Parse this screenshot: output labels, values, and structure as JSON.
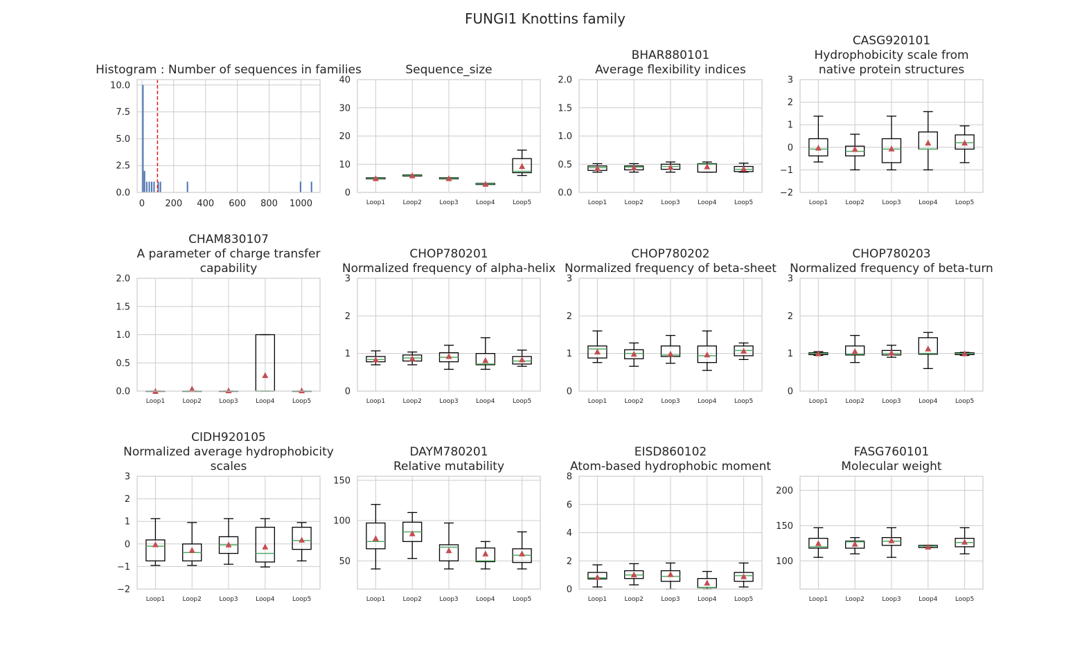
{
  "figure": {
    "title": "FUNGI1 Knottins family"
  },
  "chart_data": [
    {
      "type": "histogram",
      "title_lines": [
        "Histogram : Number of sequences in families"
      ],
      "xlim": [
        -30,
        1120
      ],
      "ylim": [
        0,
        10.5
      ],
      "xticks": [
        0,
        200,
        400,
        600,
        800,
        1000
      ],
      "yticks": [
        0.0,
        2.5,
        5.0,
        7.5,
        10.0
      ],
      "ytick_labels": [
        "0.0",
        "2.5",
        "5.0",
        "7.5",
        "10.0"
      ],
      "bar_color": "#4c72b0",
      "bins": [
        {
          "x": 2,
          "count": 10
        },
        {
          "x": 12,
          "count": 2
        },
        {
          "x": 26,
          "count": 1
        },
        {
          "x": 42,
          "count": 1
        },
        {
          "x": 57,
          "count": 1
        },
        {
          "x": 72,
          "count": 1
        },
        {
          "x": 98,
          "count": 1
        },
        {
          "x": 112,
          "count": 1
        },
        {
          "x": 282,
          "count": 1
        },
        {
          "x": 993,
          "count": 1
        },
        {
          "x": 1062,
          "count": 1
        }
      ],
      "vline": {
        "x": 98,
        "color": "#e3191c",
        "style": "dashed"
      }
    },
    {
      "type": "box",
      "title_lines": [
        "Sequence_size"
      ],
      "ylim": [
        0,
        40
      ],
      "yticks": [
        0,
        10,
        20,
        30,
        40
      ],
      "categories": [
        "Loop1",
        "Loop2",
        "Loop3",
        "Loop4",
        "Loop5"
      ],
      "boxes": [
        {
          "wl": 5,
          "q1": 4.8,
          "med": 5,
          "q3": 5.2,
          "wh": 5,
          "mean": 5
        },
        {
          "wl": 6,
          "q1": 5.8,
          "med": 6,
          "q3": 6.2,
          "wh": 6,
          "mean": 6
        },
        {
          "wl": 5,
          "q1": 4.8,
          "med": 5,
          "q3": 5.2,
          "wh": 5,
          "mean": 5
        },
        {
          "wl": 3,
          "q1": 2.8,
          "med": 3,
          "q3": 3.2,
          "wh": 3,
          "mean": 3
        },
        {
          "wl": 6,
          "q1": 7,
          "med": 7.5,
          "q3": 12,
          "wh": 15,
          "mean": 9.3
        }
      ]
    },
    {
      "type": "box",
      "title_lines": [
        "BHAR880101",
        "Average flexibility indices"
      ],
      "ylim": [
        0,
        2.0
      ],
      "yticks": [
        0.0,
        0.5,
        1.0,
        1.5,
        2.0
      ],
      "ytick_labels": [
        "0.0",
        "0.5",
        "1.0",
        "1.5",
        "2.0"
      ],
      "categories": [
        "Loop1",
        "Loop2",
        "Loop3",
        "Loop4",
        "Loop5"
      ],
      "boxes": [
        {
          "wl": 0.36,
          "q1": 0.39,
          "med": 0.44,
          "q3": 0.47,
          "wh": 0.51,
          "mean": 0.43
        },
        {
          "wl": 0.36,
          "q1": 0.4,
          "med": 0.45,
          "q3": 0.47,
          "wh": 0.51,
          "mean": 0.44
        },
        {
          "wl": 0.36,
          "q1": 0.41,
          "med": 0.46,
          "q3": 0.5,
          "wh": 0.54,
          "mean": 0.45
        },
        {
          "wl": 0.36,
          "q1": 0.36,
          "med": 0.5,
          "q3": 0.51,
          "wh": 0.54,
          "mean": 0.46
        },
        {
          "wl": 0.36,
          "q1": 0.37,
          "med": 0.41,
          "q3": 0.46,
          "wh": 0.52,
          "mean": 0.42
        }
      ]
    },
    {
      "type": "box",
      "title_lines": [
        "CASG920101",
        "Hydrophobicity scale from",
        "native protein structures"
      ],
      "ylim": [
        -2,
        3
      ],
      "yticks": [
        -2,
        -1,
        0,
        1,
        2,
        3
      ],
      "ytick_labels": [
        "−2",
        "−1",
        "0",
        "1",
        "2",
        "3"
      ],
      "categories": [
        "Loop1",
        "Loop2",
        "Loop3",
        "Loop4",
        "Loop5"
      ],
      "boxes": [
        {
          "wl": -0.65,
          "q1": -0.38,
          "med": -0.08,
          "q3": 0.38,
          "wh": 1.38,
          "mean": -0.02
        },
        {
          "wl": -1.0,
          "q1": -0.38,
          "med": -0.18,
          "q3": 0.05,
          "wh": 0.58,
          "mean": -0.08
        },
        {
          "wl": -1.0,
          "q1": -0.68,
          "med": -0.08,
          "q3": 0.38,
          "wh": 1.38,
          "mean": -0.06
        },
        {
          "wl": -1.0,
          "q1": -0.08,
          "med": -0.08,
          "q3": 0.68,
          "wh": 1.58,
          "mean": 0.2
        },
        {
          "wl": -0.68,
          "q1": -0.08,
          "med": 0.2,
          "q3": 0.55,
          "wh": 0.95,
          "mean": 0.2
        }
      ]
    },
    {
      "type": "box",
      "title_lines": [
        "CHAM830107",
        "A parameter of charge transfer",
        "capability"
      ],
      "ylim": [
        0,
        2.0
      ],
      "yticks": [
        0.0,
        0.5,
        1.0,
        1.5,
        2.0
      ],
      "ytick_labels": [
        "0.0",
        "0.5",
        "1.0",
        "1.5",
        "2.0"
      ],
      "categories": [
        "Loop1",
        "Loop2",
        "Loop3",
        "Loop4",
        "Loop5"
      ],
      "boxes": [
        {
          "wl": 0,
          "q1": 0,
          "med": 0,
          "q3": 0,
          "wh": 0,
          "mean": 0.0
        },
        {
          "wl": 0,
          "q1": 0,
          "med": 0,
          "q3": 0,
          "wh": 0,
          "mean": 0.04
        },
        {
          "wl": 0,
          "q1": 0,
          "med": 0,
          "q3": 0,
          "wh": 0,
          "mean": 0.01
        },
        {
          "wl": 0,
          "q1": 0,
          "med": 0,
          "q3": 1.0,
          "wh": 1.0,
          "mean": 0.28
        },
        {
          "wl": 0,
          "q1": 0,
          "med": 0,
          "q3": 0,
          "wh": 0,
          "mean": 0.01
        }
      ]
    },
    {
      "type": "box",
      "title_lines": [
        "CHOP780201",
        "Normalized frequency of alpha-helix"
      ],
      "ylim": [
        0,
        3
      ],
      "yticks": [
        0,
        1,
        2,
        3
      ],
      "categories": [
        "Loop1",
        "Loop2",
        "Loop3",
        "Loop4",
        "Loop5"
      ],
      "boxes": [
        {
          "wl": 0.7,
          "q1": 0.78,
          "med": 0.84,
          "q3": 0.92,
          "wh": 1.07,
          "mean": 0.84
        },
        {
          "wl": 0.7,
          "q1": 0.8,
          "med": 0.88,
          "q3": 0.96,
          "wh": 1.04,
          "mean": 0.87
        },
        {
          "wl": 0.58,
          "q1": 0.78,
          "med": 0.9,
          "q3": 1.02,
          "wh": 1.22,
          "mean": 0.93
        },
        {
          "wl": 0.58,
          "q1": 0.7,
          "med": 0.72,
          "q3": 1.0,
          "wh": 1.42,
          "mean": 0.82
        },
        {
          "wl": 0.66,
          "q1": 0.72,
          "med": 0.8,
          "q3": 0.92,
          "wh": 1.09,
          "mean": 0.84
        }
      ]
    },
    {
      "type": "box",
      "title_lines": [
        "CHOP780202",
        "Normalized frequency of beta-sheet"
      ],
      "ylim": [
        0,
        3
      ],
      "yticks": [
        0,
        1,
        2,
        3
      ],
      "categories": [
        "Loop1",
        "Loop2",
        "Loop3",
        "Loop4",
        "Loop5"
      ],
      "boxes": [
        {
          "wl": 0.76,
          "q1": 0.88,
          "med": 1.12,
          "q3": 1.2,
          "wh": 1.6,
          "mean": 1.05
        },
        {
          "wl": 0.66,
          "q1": 0.86,
          "med": 1.0,
          "q3": 1.1,
          "wh": 1.28,
          "mean": 0.99
        },
        {
          "wl": 0.74,
          "q1": 0.92,
          "med": 0.96,
          "q3": 1.2,
          "wh": 1.48,
          "mean": 0.99
        },
        {
          "wl": 0.55,
          "q1": 0.76,
          "med": 0.94,
          "q3": 1.2,
          "wh": 1.6,
          "mean": 0.97
        },
        {
          "wl": 0.84,
          "q1": 0.94,
          "med": 1.08,
          "q3": 1.2,
          "wh": 1.28,
          "mean": 1.07
        }
      ]
    },
    {
      "type": "box",
      "title_lines": [
        "CHOP780203",
        "Normalized frequency of beta-turn"
      ],
      "ylim": [
        0,
        3
      ],
      "yticks": [
        0,
        1,
        2,
        3
      ],
      "categories": [
        "Loop1",
        "Loop2",
        "Loop3",
        "Loop4",
        "Loop5"
      ],
      "boxes": [
        {
          "wl": 0.95,
          "q1": 0.97,
          "med": 1.0,
          "q3": 1.02,
          "wh": 1.05,
          "mean": 1.0
        },
        {
          "wl": 0.76,
          "q1": 0.96,
          "med": 0.98,
          "q3": 1.2,
          "wh": 1.48,
          "mean": 1.06
        },
        {
          "wl": 0.9,
          "q1": 0.96,
          "med": 1.0,
          "q3": 1.08,
          "wh": 1.22,
          "mean": 1.02
        },
        {
          "wl": 0.6,
          "q1": 0.98,
          "med": 1.0,
          "q3": 1.42,
          "wh": 1.56,
          "mean": 1.13
        },
        {
          "wl": 0.95,
          "q1": 0.97,
          "med": 1.0,
          "q3": 1.02,
          "wh": 1.03,
          "mean": 1.0
        }
      ]
    },
    {
      "type": "box",
      "title_lines": [
        "CIDH920105",
        "Normalized average hydrophobicity",
        "scales"
      ],
      "ylim": [
        -2,
        3
      ],
      "yticks": [
        -2,
        -1,
        0,
        1,
        2,
        3
      ],
      "ytick_labels": [
        "−2",
        "−1",
        "0",
        "1",
        "2",
        "3"
      ],
      "categories": [
        "Loop1",
        "Loop2",
        "Loop3",
        "Loop4",
        "Loop5"
      ],
      "boxes": [
        {
          "wl": -0.95,
          "q1": -0.75,
          "med": -0.1,
          "q3": 0.18,
          "wh": 1.12,
          "mean": -0.02
        },
        {
          "wl": -0.95,
          "q1": -0.75,
          "med": -0.38,
          "q3": 0.0,
          "wh": 0.95,
          "mean": -0.27
        },
        {
          "wl": -0.9,
          "q1": -0.42,
          "med": -0.04,
          "q3": 0.32,
          "wh": 1.12,
          "mean": -0.03
        },
        {
          "wl": -1.02,
          "q1": -0.8,
          "med": -0.42,
          "q3": 0.74,
          "wh": 1.12,
          "mean": -0.12
        },
        {
          "wl": -0.75,
          "q1": -0.24,
          "med": 0.15,
          "q3": 0.74,
          "wh": 0.95,
          "mean": 0.18
        }
      ]
    },
    {
      "type": "box",
      "title_lines": [
        "DAYM780201",
        "Relative mutability"
      ],
      "ylim": [
        15,
        155
      ],
      "yticks": [
        50,
        100,
        150
      ],
      "categories": [
        "Loop1",
        "Loop2",
        "Loop3",
        "Loop4",
        "Loop5"
      ],
      "boxes": [
        {
          "wl": 40,
          "q1": 65,
          "med": 74,
          "q3": 97,
          "wh": 120,
          "mean": 78
        },
        {
          "wl": 53,
          "q1": 74,
          "med": 86,
          "q3": 98,
          "wh": 110,
          "mean": 84
        },
        {
          "wl": 40,
          "q1": 50,
          "med": 67,
          "q3": 70,
          "wh": 97,
          "mean": 63
        },
        {
          "wl": 40,
          "q1": 49,
          "med": 50,
          "q3": 66,
          "wh": 74,
          "mean": 59
        },
        {
          "wl": 40,
          "q1": 48,
          "med": 57,
          "q3": 65,
          "wh": 86,
          "mean": 59
        }
      ]
    },
    {
      "type": "box",
      "title_lines": [
        "EISD860102",
        "Atom-based hydrophobic moment"
      ],
      "ylim": [
        0,
        8
      ],
      "yticks": [
        0,
        2,
        4,
        6,
        8
      ],
      "categories": [
        "Loop1",
        "Loop2",
        "Loop3",
        "Loop4",
        "Loop5"
      ],
      "boxes": [
        {
          "wl": 0.15,
          "q1": 0.72,
          "med": 0.8,
          "q3": 1.18,
          "wh": 1.72,
          "mean": 0.85
        },
        {
          "wl": 0.3,
          "q1": 0.75,
          "med": 1.0,
          "q3": 1.3,
          "wh": 1.8,
          "mean": 1.03
        },
        {
          "wl": 0.0,
          "q1": 0.55,
          "med": 0.9,
          "q3": 1.3,
          "wh": 1.85,
          "mean": 1.05
        },
        {
          "wl": 0.0,
          "q1": 0.1,
          "med": 0.12,
          "q3": 0.75,
          "wh": 1.25,
          "mean": 0.45
        },
        {
          "wl": 0.15,
          "q1": 0.55,
          "med": 0.95,
          "q3": 1.18,
          "wh": 1.85,
          "mean": 0.9
        }
      ]
    },
    {
      "type": "box",
      "title_lines": [
        "FASG760101",
        "Molecular weight"
      ],
      "ylim": [
        60,
        220
      ],
      "yticks": [
        100,
        150,
        200
      ],
      "categories": [
        "Loop1",
        "Loop2",
        "Loop3",
        "Loop4",
        "Loop5"
      ],
      "boxes": [
        {
          "wl": 105,
          "q1": 118,
          "med": 120,
          "q3": 132,
          "wh": 147,
          "mean": 125
        },
        {
          "wl": 110,
          "q1": 118,
          "med": 127,
          "q3": 128,
          "wh": 133,
          "mean": 124
        },
        {
          "wl": 105,
          "q1": 122,
          "med": 128,
          "q3": 133,
          "wh": 147,
          "mean": 129
        },
        {
          "wl": 119,
          "q1": 119,
          "med": 121,
          "q3": 122,
          "wh": 122,
          "mean": 120
        },
        {
          "wl": 110,
          "q1": 120,
          "med": 126,
          "q3": 132,
          "wh": 147,
          "mean": 127
        }
      ]
    }
  ]
}
